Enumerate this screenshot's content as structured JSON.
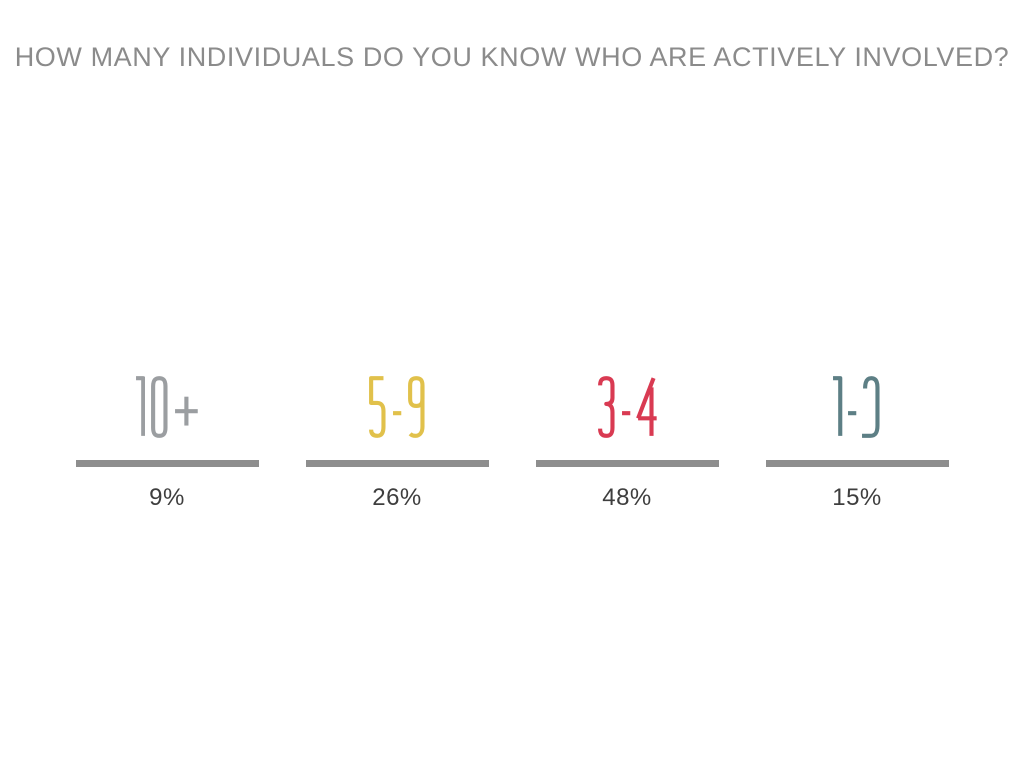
{
  "title": "HOW MANY INDIVIDUALS DO YOU KNOW WHO ARE ACTIVELY INVOLVED?",
  "chart_data": {
    "type": "bar",
    "title": "HOW MANY INDIVIDUALS DO YOU KNOW WHO ARE ACTIVELY INVOLVED?",
    "categories": [
      "10+",
      "5-9",
      "3-4",
      "1-2"
    ],
    "values": [
      9,
      26,
      48,
      15
    ],
    "value_labels": [
      "9%",
      "26%",
      "48%",
      "15%"
    ],
    "category_colors": [
      "#9b9ea1",
      "#e1c14b",
      "#d93a52",
      "#5d7f85"
    ],
    "xlabel": "",
    "ylabel": "",
    "layout_hints": {
      "style": "infographic stat row on white slide, no axes, no legend, no grid",
      "bars": "equal-length gray underline rules (not proportional to values)",
      "value_position": "percentage text below each underline",
      "category_position": "large ultra-condensed thin numerals above each underline"
    }
  },
  "stats": [
    {
      "category": "10+",
      "percent": "9%",
      "color": "#9b9ea1"
    },
    {
      "category": "5-9",
      "percent": "26%",
      "color": "#e1c14b"
    },
    {
      "category": "3-4",
      "percent": "48%",
      "color": "#d93a52"
    },
    {
      "category": "1-2",
      "percent": "15%",
      "color": "#5d7f85"
    }
  ],
  "colors": {
    "background": "#ffffff",
    "title": "#8b8b8b",
    "bar": "#8e8e8e",
    "percent": "#3e3e3e"
  }
}
